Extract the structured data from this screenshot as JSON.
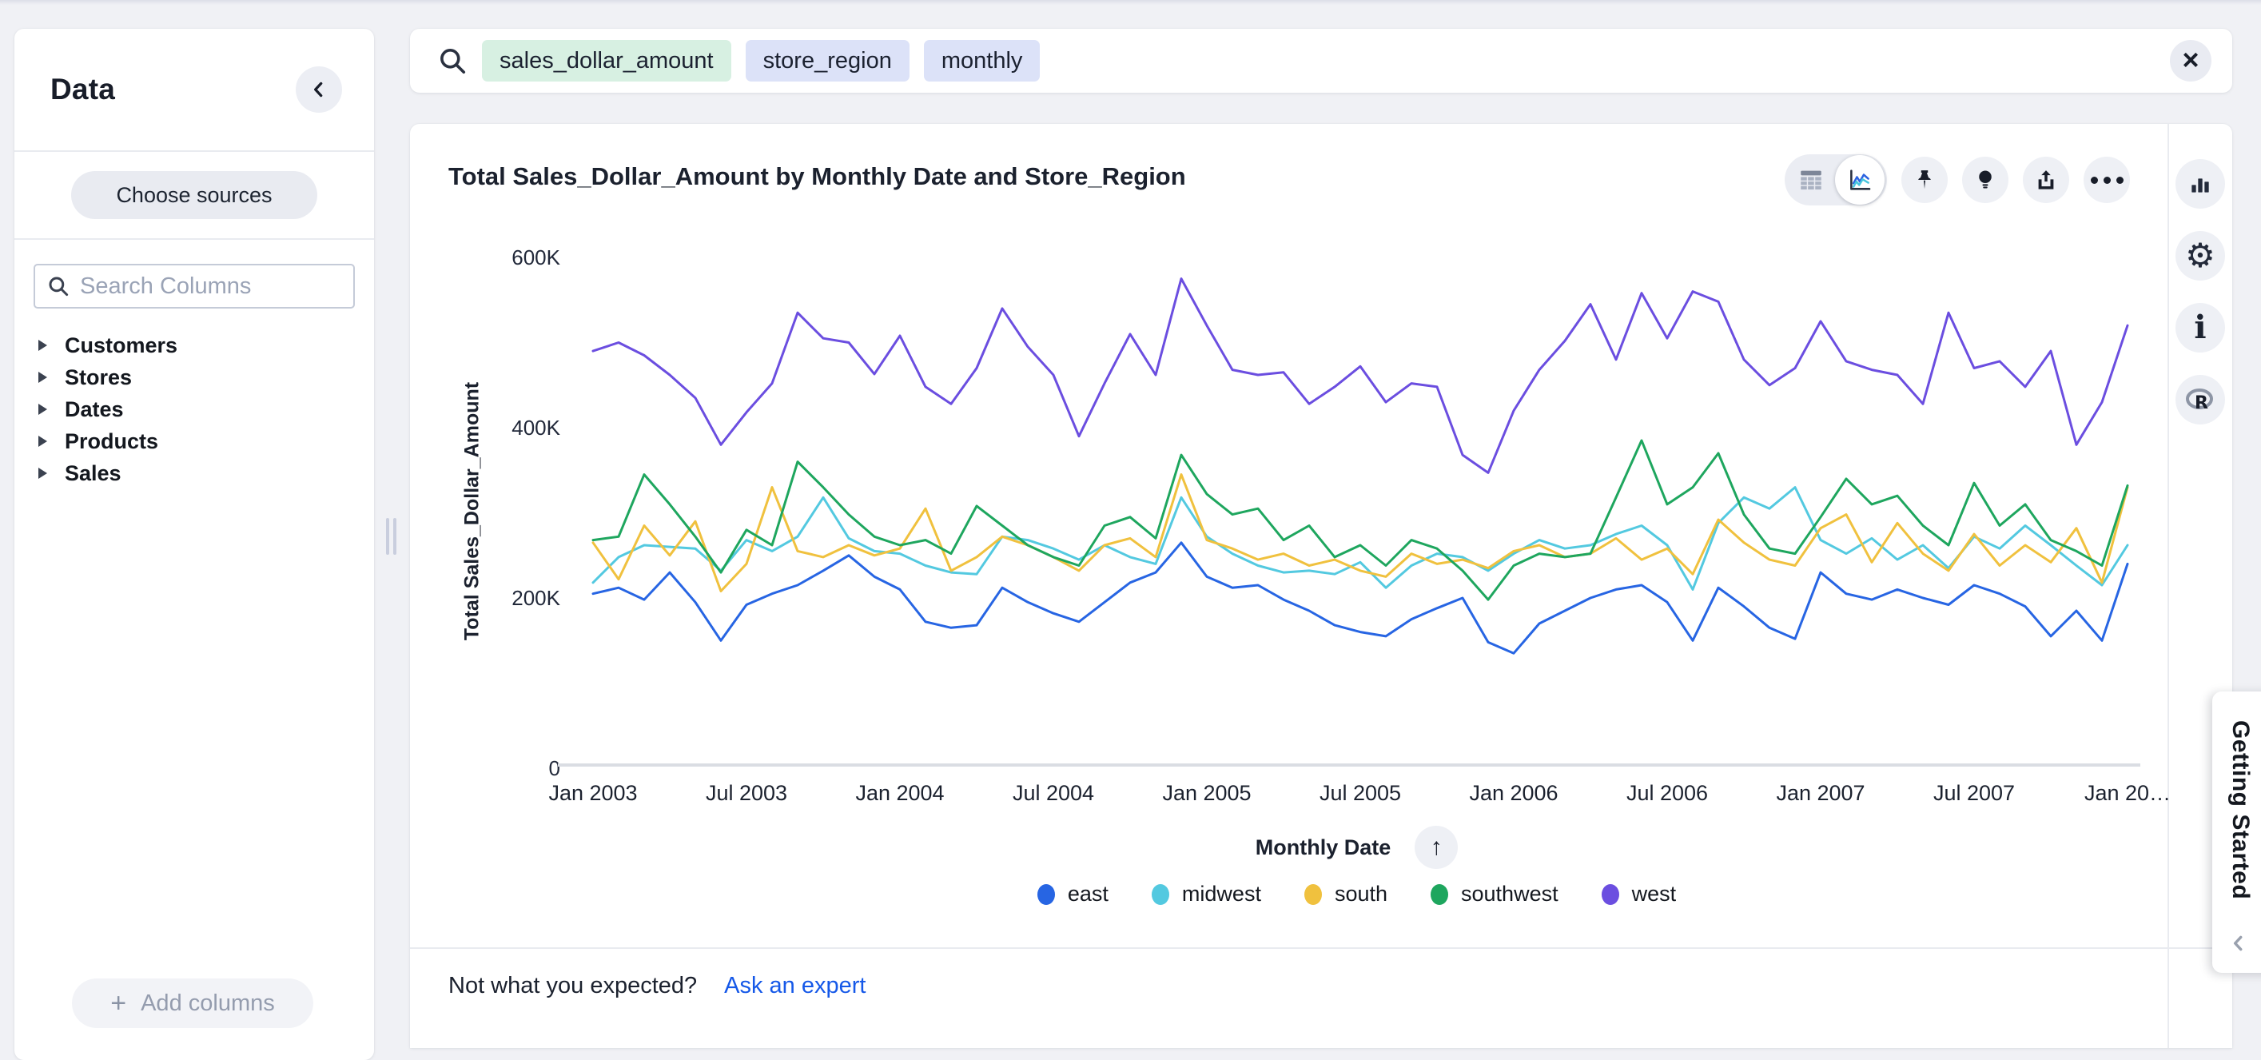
{
  "sidebar": {
    "title": "Data",
    "collapse_icon": "chevron-left",
    "choose_sources_label": "Choose sources",
    "search_placeholder": "Search Columns",
    "tree": [
      {
        "label": "Customers"
      },
      {
        "label": "Stores"
      },
      {
        "label": "Dates"
      },
      {
        "label": "Products"
      },
      {
        "label": "Sales"
      }
    ],
    "add_columns_label": "Add columns",
    "add_columns_plus": "+"
  },
  "search_bar": {
    "tokens": [
      {
        "text": "sales_dollar_amount",
        "type": "measure"
      },
      {
        "text": "store_region",
        "type": "attribute"
      },
      {
        "text": "monthly",
        "type": "attribute"
      }
    ],
    "close_label": "×"
  },
  "main": {
    "title": "Total Sales_Dollar_Amount by Monthly Date and Store_Region",
    "toolbar_icons": [
      "table-view",
      "chart-view",
      "pin",
      "insights-bulb",
      "share-upload",
      "more-ellipsis"
    ],
    "sort_arrow": "↑",
    "footer_question": "Not what you expected?",
    "footer_link": "Ask an expert"
  },
  "right_rail": {
    "icons": [
      "chart-type-bar",
      "settings-gear",
      "info",
      "r-analysis"
    ],
    "info_glyph": "i",
    "gear_glyph": "⚙",
    "r_glyph": "R"
  },
  "getting_started": {
    "label": "Getting Started"
  },
  "colors": {
    "accent_link": "#1558e8",
    "token_measure_bg": "#d7f0e2",
    "token_attribute_bg": "#dce2f8",
    "east": "#2765e3",
    "midwest": "#53c9e0",
    "south": "#f0c13e",
    "southwest": "#1ea65e",
    "west": "#6b4ee0"
  },
  "chart_data": {
    "type": "line",
    "title": "Total Sales_Dollar_Amount by Monthly Date and Store_Region",
    "xlabel": "Monthly Date",
    "ylabel": "Total Sales_Dollar_Amount",
    "ylim": [
      0,
      600000
    ],
    "values_unit": "USD, values in thousands",
    "grid": false,
    "legend_position": "bottom",
    "y_ticks_top_down": [
      "600K",
      "400K",
      "200K",
      "0"
    ],
    "x_ticks_shown": [
      "Jan 2003",
      "Jul 2003",
      "Jan 2004",
      "Jul 2004",
      "Jan 2005",
      "Jul 2005",
      "Jan 2006",
      "Jul 2006",
      "Jan 2007",
      "Jul 2007",
      "Jan 20…"
    ],
    "x": [
      "Jan 2003",
      "Feb 2003",
      "Mar 2003",
      "Apr 2003",
      "May 2003",
      "Jun 2003",
      "Jul 2003",
      "Aug 2003",
      "Sep 2003",
      "Oct 2003",
      "Nov 2003",
      "Dec 2003",
      "Jan 2004",
      "Feb 2004",
      "Mar 2004",
      "Apr 2004",
      "May 2004",
      "Jun 2004",
      "Jul 2004",
      "Aug 2004",
      "Sep 2004",
      "Oct 2004",
      "Nov 2004",
      "Dec 2004",
      "Jan 2005",
      "Feb 2005",
      "Mar 2005",
      "Apr 2005",
      "May 2005",
      "Jun 2005",
      "Jul 2005",
      "Aug 2005",
      "Sep 2005",
      "Oct 2005",
      "Nov 2005",
      "Dec 2005",
      "Jan 2006",
      "Feb 2006",
      "Mar 2006",
      "Apr 2006",
      "May 2006",
      "Jun 2006",
      "Jul 2006",
      "Aug 2006",
      "Sep 2006",
      "Oct 2006",
      "Nov 2006",
      "Dec 2006",
      "Jan 2007",
      "Feb 2007",
      "Mar 2007",
      "Apr 2007",
      "May 2007",
      "Jun 2007",
      "Jul 2007",
      "Aug 2007",
      "Sep 2007",
      "Oct 2007",
      "Nov 2007",
      "Dec 2007",
      "Jan 2008"
    ],
    "series": [
      {
        "name": "east",
        "color": "#2765e3",
        "values": [
          205,
          212,
          198,
          230,
          195,
          150,
          192,
          205,
          215,
          232,
          250,
          225,
          210,
          172,
          165,
          168,
          212,
          195,
          182,
          172,
          195,
          218,
          230,
          265,
          225,
          212,
          215,
          198,
          185,
          168,
          160,
          155,
          175,
          188,
          200,
          148,
          135,
          170,
          185,
          200,
          210,
          215,
          195,
          150,
          212,
          190,
          165,
          152,
          230,
          205,
          198,
          210,
          200,
          192,
          215,
          205,
          190,
          155,
          185,
          150,
          240
        ]
      },
      {
        "name": "midwest",
        "color": "#53c9e0",
        "values": [
          218,
          248,
          262,
          260,
          258,
          232,
          268,
          255,
          272,
          318,
          270,
          255,
          252,
          238,
          230,
          228,
          272,
          268,
          258,
          245,
          262,
          248,
          240,
          318,
          272,
          252,
          238,
          230,
          232,
          228,
          242,
          212,
          238,
          252,
          248,
          232,
          252,
          268,
          258,
          262,
          275,
          285,
          262,
          210,
          288,
          318,
          305,
          330,
          268,
          252,
          270,
          245,
          262,
          235,
          272,
          258,
          285,
          262,
          238,
          215,
          262
        ]
      },
      {
        "name": "south",
        "color": "#f0c13e",
        "values": [
          265,
          222,
          285,
          250,
          290,
          208,
          240,
          330,
          255,
          248,
          262,
          250,
          258,
          305,
          232,
          248,
          272,
          262,
          248,
          232,
          262,
          270,
          248,
          345,
          268,
          258,
          245,
          252,
          238,
          245,
          232,
          225,
          252,
          240,
          245,
          235,
          255,
          262,
          248,
          252,
          270,
          245,
          258,
          228,
          292,
          265,
          245,
          238,
          282,
          298,
          242,
          288,
          252,
          232,
          275,
          238,
          262,
          242,
          282,
          218,
          330
        ]
      },
      {
        "name": "southwest",
        "color": "#1ea65e",
        "values": [
          268,
          272,
          345,
          310,
          272,
          230,
          280,
          262,
          360,
          330,
          298,
          272,
          262,
          268,
          252,
          308,
          285,
          262,
          248,
          238,
          285,
          295,
          270,
          368,
          322,
          298,
          305,
          268,
          285,
          248,
          262,
          238,
          268,
          258,
          232,
          198,
          238,
          252,
          248,
          252,
          318,
          385,
          310,
          330,
          370,
          298,
          258,
          252,
          295,
          340,
          310,
          320,
          285,
          262,
          335,
          285,
          310,
          268,
          255,
          238,
          332
        ]
      },
      {
        "name": "west",
        "color": "#6b4ee0",
        "values": [
          490,
          500,
          485,
          462,
          435,
          380,
          418,
          452,
          535,
          505,
          500,
          463,
          508,
          448,
          428,
          470,
          540,
          495,
          462,
          390,
          452,
          510,
          462,
          575,
          520,
          468,
          462,
          465,
          428,
          448,
          472,
          430,
          452,
          448,
          368,
          347,
          420,
          468,
          502,
          545,
          480,
          558,
          505,
          560,
          548,
          480,
          450,
          470,
          525,
          478,
          468,
          462,
          428,
          535,
          470,
          478,
          448,
          490,
          380,
          430,
          520
        ]
      }
    ]
  }
}
